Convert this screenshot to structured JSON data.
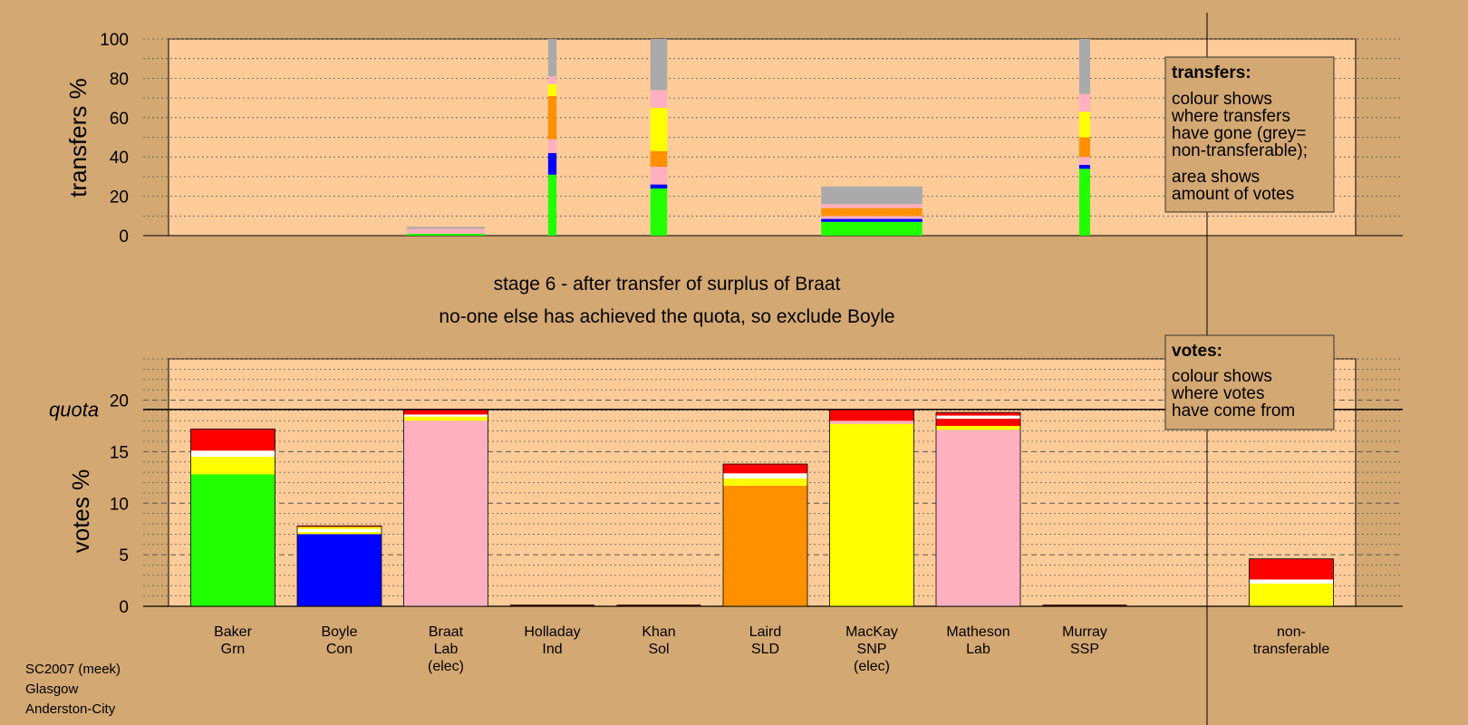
{
  "stage_title": "stage 6 - after transfer of surplus of Braat",
  "stage_subtitle": "no-one else has achieved the quota, so exclude Boyle",
  "footer": {
    "line1": "SC2007 (meek)",
    "line2": "Glasgow",
    "line3": "Anderston-City"
  },
  "colors": {
    "background": "#d4a872",
    "plot_fill": "#ffcc99",
    "legend_fill": "#d4a872",
    "segment_colors": {
      "green": "#22ff00",
      "blue": "#0000ff",
      "pink": "#ffb0c0",
      "orange": "#ff9000",
      "yellow": "#ffff00",
      "white": "#ffffff",
      "red": "#ff0000",
      "grey": "#aaaaaa"
    }
  },
  "legend_transfers": {
    "title": "transfers:",
    "line1": "colour shows",
    "line2": "where transfers",
    "line3": "have gone (grey=",
    "line4": "non-transferable);",
    "line5": "area shows",
    "line6": "amount of votes"
  },
  "legend_votes": {
    "title": "votes:",
    "line1": "colour shows",
    "line2": "where votes",
    "line3": "have come from"
  },
  "chart_data": [
    {
      "type": "bar",
      "stacked": true,
      "ylabel": "transfers %",
      "ylim": [
        0,
        100
      ],
      "yticks": [
        0,
        20,
        40,
        60,
        80,
        100
      ],
      "grid": true,
      "legend_position": "top-right",
      "categories": [
        "Baker",
        "Boyle",
        "Braat",
        "Holladay",
        "Khan",
        "Laird",
        "MacKay",
        "Matheson",
        "Murray"
      ],
      "bars": [
        {
          "category": "Braat",
          "width_share": 0.93,
          "segments": [
            [
              "green",
              1.0
            ],
            [
              "pink",
              2.5
            ],
            [
              "grey",
              1.0
            ]
          ]
        },
        {
          "category": "Holladay",
          "width_share": 0.1,
          "segments": [
            [
              "green",
              31
            ],
            [
              "blue",
              11
            ],
            [
              "pink",
              7
            ],
            [
              "orange",
              22
            ],
            [
              "yellow",
              6
            ],
            [
              "pink",
              4
            ],
            [
              "grey",
              19
            ]
          ]
        },
        {
          "category": "Khan",
          "width_share": 0.2,
          "segments": [
            [
              "green",
              24
            ],
            [
              "blue",
              2
            ],
            [
              "pink",
              9
            ],
            [
              "orange",
              8
            ],
            [
              "yellow",
              22
            ],
            [
              "pink",
              9
            ],
            [
              "grey",
              26
            ]
          ]
        },
        {
          "category": "MacKay",
          "width_share": 1.2,
          "segments": [
            [
              "green",
              7
            ],
            [
              "blue",
              1.5
            ],
            [
              "pink",
              1.5
            ],
            [
              "orange",
              4
            ],
            [
              "pink",
              2
            ],
            [
              "grey",
              9
            ]
          ]
        },
        {
          "category": "Murray",
          "width_share": 0.13,
          "segments": [
            [
              "green",
              34
            ],
            [
              "blue",
              2
            ],
            [
              "pink",
              4
            ],
            [
              "orange",
              10
            ],
            [
              "yellow",
              13
            ],
            [
              "pink",
              9
            ],
            [
              "grey",
              28
            ]
          ]
        }
      ]
    },
    {
      "type": "bar",
      "stacked": true,
      "ylabel": "votes %",
      "ylim": [
        0,
        24
      ],
      "yticks": [
        0,
        5,
        10,
        15,
        20
      ],
      "quota": 19.1,
      "quota_label": "quota",
      "grid": true,
      "legend_position": "top-right",
      "categories": [
        {
          "name": "Baker",
          "party": "Grn",
          "elected": ""
        },
        {
          "name": "Boyle",
          "party": "Con",
          "elected": ""
        },
        {
          "name": "Braat",
          "party": "Lab",
          "elected": "(elec)"
        },
        {
          "name": "Holladay",
          "party": "Ind",
          "elected": ""
        },
        {
          "name": "Khan",
          "party": "Sol",
          "elected": ""
        },
        {
          "name": "Laird",
          "party": "SLD",
          "elected": ""
        },
        {
          "name": "MacKay",
          "party": "SNP",
          "elected": "(elec)"
        },
        {
          "name": "Matheson",
          "party": "Lab",
          "elected": ""
        },
        {
          "name": "Murray",
          "party": "SSP",
          "elected": ""
        },
        {
          "name": "non-",
          "party": "transferable",
          "elected": ""
        }
      ],
      "stacks": [
        [
          [
            "green",
            12.8
          ],
          [
            "yellow",
            1.7
          ],
          [
            "white",
            0.6
          ],
          [
            "red",
            2.1
          ]
        ],
        [
          [
            "blue",
            7.0
          ],
          [
            "yellow",
            0.2
          ],
          [
            "white",
            0.3
          ],
          [
            "yellow",
            0.2
          ],
          [
            "red",
            0.1
          ]
        ],
        [
          [
            "pink",
            18.0
          ],
          [
            "yellow",
            0.4
          ],
          [
            "white",
            0.2
          ],
          [
            "red",
            0.5
          ]
        ],
        [
          [
            "red",
            0.1
          ]
        ],
        [
          [
            "red",
            0.1
          ]
        ],
        [
          [
            "orange",
            11.7
          ],
          [
            "yellow",
            0.7
          ],
          [
            "white",
            0.5
          ],
          [
            "red",
            0.9
          ]
        ],
        [
          [
            "yellow",
            17.7
          ],
          [
            "pink",
            0.3
          ],
          [
            "red",
            1.1
          ]
        ],
        [
          [
            "pink",
            17.1
          ],
          [
            "yellow",
            0.4
          ],
          [
            "red",
            0.7
          ],
          [
            "white",
            0.3
          ],
          [
            "red",
            0.3
          ]
        ],
        [
          [
            "red",
            0.1
          ]
        ],
        [
          [
            "yellow",
            2.2
          ],
          [
            "white",
            0.4
          ],
          [
            "red",
            2.0
          ]
        ]
      ]
    }
  ]
}
